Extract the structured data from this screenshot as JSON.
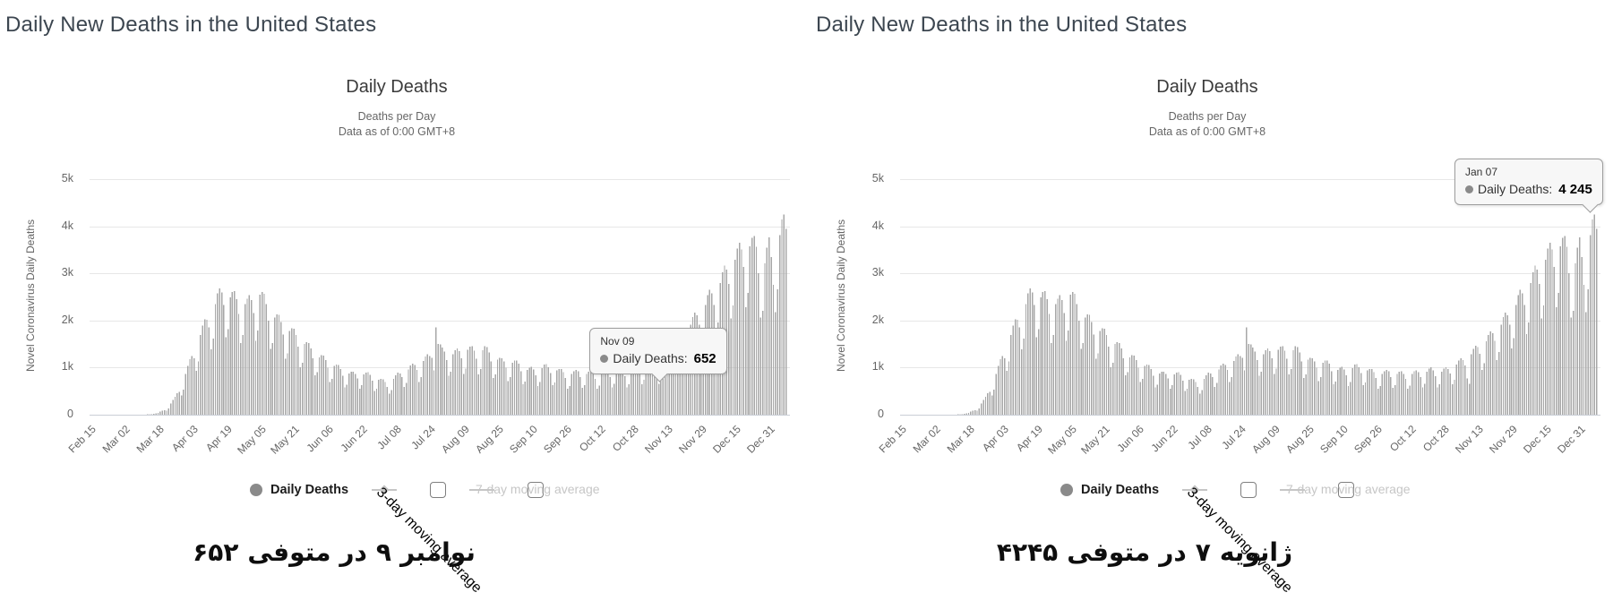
{
  "colors": {
    "page_title": "#3c4650",
    "chart_title": "#3a3a3a",
    "subtitle": "#666666",
    "axis_label": "#666666",
    "bar": "#a7a7a7",
    "grid": "#e7e7e7",
    "axis_line": "#c9ced6",
    "legend_active": "#1c1c1c",
    "legend_inactive": "#c6c6c6",
    "marker_gray": "#8a8a8a",
    "tooltip_bg": "#f7f7f7",
    "tooltip_border": "#9e9e9e",
    "caption": "#0e0e0e"
  },
  "chart_data": {
    "type": "bar",
    "title": "Daily Deaths",
    "subtitle": [
      "Deaths per Day",
      "Data as of 0:00 GMT+8"
    ],
    "ylabel": "Novel Coronavirus Daily Deaths",
    "ylim": [
      0,
      5000
    ],
    "yticks": [
      {
        "value": 0,
        "label": "0"
      },
      {
        "value": 1000,
        "label": "1k"
      },
      {
        "value": 2000,
        "label": "2k"
      },
      {
        "value": 3000,
        "label": "3k"
      },
      {
        "value": 4000,
        "label": "4k"
      },
      {
        "value": 5000,
        "label": "5k"
      }
    ],
    "xticks": [
      {
        "day": 0,
        "label": "Feb 15"
      },
      {
        "day": 16,
        "label": "Mar 02"
      },
      {
        "day": 32,
        "label": "Mar 18"
      },
      {
        "day": 48,
        "label": "Apr 03"
      },
      {
        "day": 64,
        "label": "Apr 19"
      },
      {
        "day": 80,
        "label": "May 05"
      },
      {
        "day": 96,
        "label": "May 21"
      },
      {
        "day": 112,
        "label": "Jun 06"
      },
      {
        "day": 128,
        "label": "Jun 22"
      },
      {
        "day": 144,
        "label": "Jul 08"
      },
      {
        "day": 160,
        "label": "Jul 24"
      },
      {
        "day": 176,
        "label": "Aug 09"
      },
      {
        "day": 192,
        "label": "Aug 25"
      },
      {
        "day": 208,
        "label": "Sep 10"
      },
      {
        "day": 224,
        "label": "Sep 26"
      },
      {
        "day": 240,
        "label": "Oct 12"
      },
      {
        "day": 256,
        "label": "Oct 28"
      },
      {
        "day": 272,
        "label": "Nov 13"
      },
      {
        "day": 288,
        "label": "Nov 29"
      },
      {
        "day": 304,
        "label": "Dec 15"
      },
      {
        "day": 320,
        "label": "Dec 31"
      }
    ],
    "days_total": 329,
    "series": [
      {
        "name": "Daily Deaths",
        "visible": true,
        "envelope_anchors": [
          [
            0,
            0
          ],
          [
            20,
            1
          ],
          [
            24,
            3
          ],
          [
            28,
            10
          ],
          [
            32,
            35
          ],
          [
            36,
            120
          ],
          [
            40,
            330
          ],
          [
            44,
            700
          ],
          [
            48,
            1150
          ],
          [
            52,
            1600
          ],
          [
            56,
            1950
          ],
          [
            60,
            2300
          ],
          [
            63,
            2450
          ],
          [
            66,
            2350
          ],
          [
            70,
            2250
          ],
          [
            74,
            2200
          ],
          [
            78,
            2300
          ],
          [
            80,
            2400
          ],
          [
            84,
            2100
          ],
          [
            88,
            1900
          ],
          [
            92,
            1750
          ],
          [
            96,
            1600
          ],
          [
            100,
            1450
          ],
          [
            104,
            1300
          ],
          [
            108,
            1150
          ],
          [
            112,
            1050
          ],
          [
            116,
            950
          ],
          [
            120,
            850
          ],
          [
            124,
            800
          ],
          [
            128,
            820
          ],
          [
            132,
            780
          ],
          [
            136,
            700
          ],
          [
            140,
            620
          ],
          [
            144,
            750
          ],
          [
            148,
            870
          ],
          [
            152,
            950
          ],
          [
            156,
            1050
          ],
          [
            160,
            1150
          ],
          [
            163,
            1500
          ],
          [
            166,
            1250
          ],
          [
            170,
            1200
          ],
          [
            174,
            1250
          ],
          [
            178,
            1300
          ],
          [
            182,
            1250
          ],
          [
            186,
            1300
          ],
          [
            190,
            1150
          ],
          [
            194,
            1050
          ],
          [
            198,
            1050
          ],
          [
            202,
            1000
          ],
          [
            206,
            900
          ],
          [
            210,
            880
          ],
          [
            214,
            950
          ],
          [
            218,
            920
          ],
          [
            222,
            850
          ],
          [
            226,
            800
          ],
          [
            230,
            850
          ],
          [
            234,
            820
          ],
          [
            238,
            800
          ],
          [
            242,
            820
          ],
          [
            246,
            850
          ],
          [
            250,
            880
          ],
          [
            254,
            850
          ],
          [
            258,
            900
          ],
          [
            262,
            1000
          ],
          [
            266,
            1100
          ],
          [
            270,
            1250
          ],
          [
            274,
            1400
          ],
          [
            278,
            1550
          ],
          [
            282,
            1750
          ],
          [
            286,
            1950
          ],
          [
            290,
            2200
          ],
          [
            294,
            2450
          ],
          [
            298,
            2700
          ],
          [
            302,
            3000
          ],
          [
            306,
            3200
          ],
          [
            310,
            3400
          ],
          [
            314,
            3300
          ],
          [
            317,
            2900
          ],
          [
            320,
            3300
          ],
          [
            322,
            2900
          ],
          [
            324,
            3500
          ],
          [
            326,
            3700
          ],
          [
            327,
            4245
          ],
          [
            328,
            3650
          ]
        ],
        "weekly_factors": [
          0.95,
          0.68,
          0.76,
          1.06,
          1.12,
          1.14,
          1.08
        ],
        "start_weekday": "Saturday",
        "overrides": {
          "163": 1850,
          "268": 652,
          "327": 4245
        }
      },
      {
        "name": "3-day moving average",
        "visible": false
      },
      {
        "name": "7-day moving average",
        "visible": false
      }
    ]
  },
  "legend": {
    "items": [
      {
        "label": "Daily Deaths",
        "marker": "circle",
        "active": true,
        "checkbox": false,
        "checked": false
      },
      {
        "label": "3-day moving average",
        "marker": "diamond-line",
        "active": false,
        "checkbox": true,
        "checked": false
      },
      {
        "label": "7-day moving average",
        "marker": "star-line",
        "active": false,
        "checkbox": true,
        "checked": false
      }
    ]
  },
  "charts": [
    {
      "page_title": "Daily New Deaths in the United States",
      "tooltip": {
        "date": "Nov 09",
        "series": "Daily Deaths",
        "value_display": "652",
        "day": 268,
        "value": 652
      },
      "caption": {
        "text": "۶۵۲ متوفی در ۹ نوامبر",
        "words": [
          "۶۵۲",
          "متوفی",
          "در",
          "۹",
          "نوامبر"
        ]
      }
    },
    {
      "page_title": "Daily New Deaths in the United States",
      "tooltip": {
        "date": "Jan 07",
        "series": "Daily Deaths",
        "value_display": "4 245",
        "day": 327,
        "value": 4245
      },
      "caption": {
        "text": "۴۲۴۵ متوفی در ۷ ژانویه",
        "words": [
          "۴۲۴۵",
          "متوفی",
          "در",
          "۷",
          "ژانویه"
        ]
      }
    }
  ]
}
